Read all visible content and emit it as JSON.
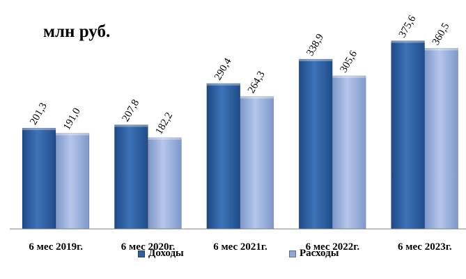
{
  "chart_data": {
    "type": "bar",
    "title": "",
    "unit_label": "млн руб.",
    "categories": [
      "6 мес 2019г.",
      "6 мес 2020г.",
      "6 мес 2021г.",
      "6 мес 2022г.",
      "6 мес 2023г."
    ],
    "series": [
      {
        "name": "Доходы",
        "values": [
          201.3,
          207.8,
          290.4,
          338.9,
          375.6
        ],
        "labels": [
          "201,3",
          "207,8",
          "290,4",
          "338,9",
          "375,6"
        ],
        "color": "#2E5F9E"
      },
      {
        "name": "Расходы",
        "values": [
          191.0,
          182.2,
          264.3,
          305.6,
          360.5
        ],
        "labels": [
          "191,0",
          "182,2",
          "264,3",
          "305,6",
          "360,5"
        ],
        "color": "#8FA8D8"
      }
    ],
    "ylim": [
      0,
      400
    ],
    "grid": false,
    "legend_position": "bottom"
  }
}
